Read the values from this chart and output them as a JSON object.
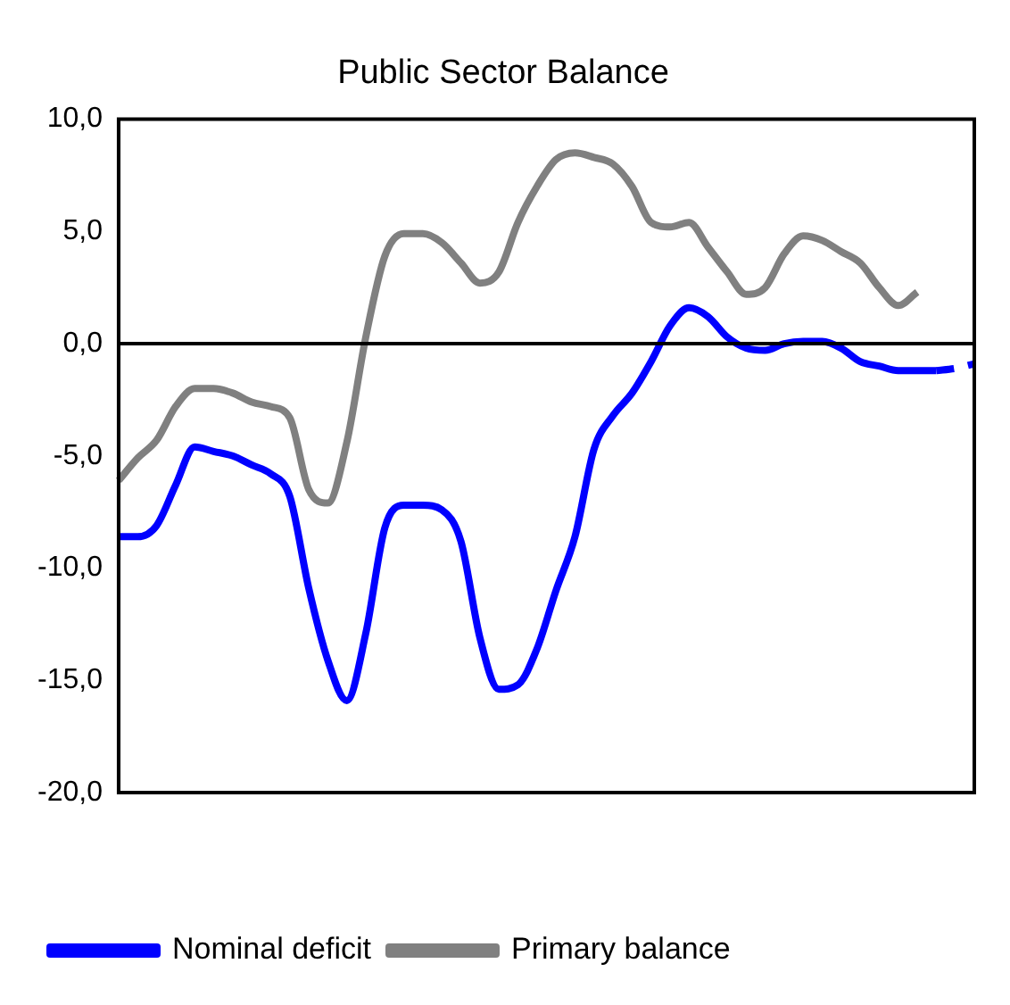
{
  "chart_data": {
    "type": "line",
    "title": "Public Sector Balance",
    "categories": [
      null,
      null,
      null,
      null,
      null,
      null,
      null,
      null,
      null,
      null,
      null,
      null,
      null,
      null,
      null,
      null,
      null,
      null,
      null,
      null,
      null,
      null,
      null,
      null,
      null,
      null,
      null,
      null,
      null,
      null,
      null,
      null,
      null,
      null,
      null,
      null,
      null,
      null,
      null,
      null,
      null,
      null,
      null,
      null,
      null,
      null
    ],
    "series": [
      {
        "name": "Nominal deficit",
        "color": "#0000ff",
        "values": [
          -8.6,
          -8.6,
          -8.1,
          -6.3,
          -4.6,
          -4.8,
          -5.0,
          -5.4,
          -5.8,
          -6.8,
          -10.9,
          -14.1,
          -15.9,
          -12.9,
          -8.2,
          -7.2,
          -7.2,
          -7.4,
          -8.8,
          -13.1,
          -15.4,
          -15.2,
          -13.6,
          -11.0,
          -8.6,
          -4.7,
          -3.2,
          -2.2,
          -0.8,
          0.8,
          1.6,
          1.2,
          0.3,
          -0.2,
          -0.3,
          0.0,
          0.1,
          0.1,
          -0.2,
          -0.8,
          -1.0,
          -1.2,
          -1.2,
          -1.2,
          null,
          null
        ]
      },
      {
        "color": "#0000ff",
        "line_style": "dashed",
        "values": [
          null,
          null,
          null,
          null,
          null,
          null,
          null,
          null,
          null,
          null,
          null,
          null,
          null,
          null,
          null,
          null,
          null,
          null,
          null,
          null,
          null,
          null,
          null,
          null,
          null,
          null,
          null,
          null,
          null,
          null,
          null,
          null,
          null,
          null,
          null,
          null,
          null,
          null,
          null,
          null,
          null,
          null,
          null,
          -1.2,
          -1.1,
          -0.9
        ]
      },
      {
        "name": "Primary balance",
        "color": "#808080",
        "values": [
          -6.1,
          -5.1,
          -4.3,
          -2.8,
          -2.0,
          -2.0,
          -2.2,
          -2.6,
          -2.8,
          -3.3,
          -6.5,
          -7.1,
          -4.4,
          0.3,
          3.9,
          4.9,
          4.9,
          4.5,
          3.6,
          2.7,
          3.2,
          5.4,
          7.0,
          8.2,
          8.5,
          8.3,
          8.0,
          7.0,
          5.4,
          5.2,
          5.4,
          4.3,
          3.2,
          2.2,
          2.5,
          4.0,
          4.8,
          4.6,
          4.1,
          3.6,
          2.5,
          1.7,
          2.3,
          null,
          null,
          null
        ]
      }
    ],
    "ylim": [
      -20,
      10
    ],
    "yticks": [
      {
        "value": -20,
        "label": "-20,0"
      },
      {
        "value": -15,
        "label": "-15,0"
      },
      {
        "value": -10,
        "label": "-10,0"
      },
      {
        "value": -5,
        "label": "-5,0"
      },
      {
        "value": 0,
        "label": "0,0"
      },
      {
        "value": 5,
        "label": "5,0"
      },
      {
        "value": 10,
        "label": "10,0"
      }
    ],
    "ref_lines": [
      {
        "axis": "y",
        "value": 0,
        "color": "#000000"
      }
    ],
    "grid": false,
    "legend": "bottom",
    "marker": "none",
    "line_style": "solid"
  }
}
